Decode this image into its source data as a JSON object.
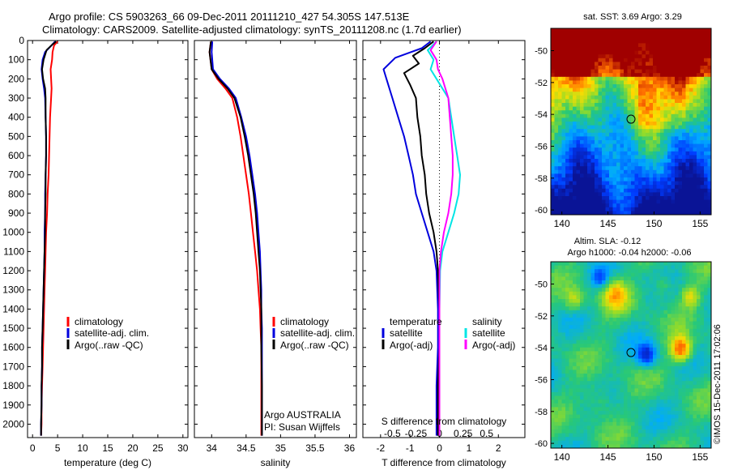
{
  "header": {
    "line1": "Argo profile: CS 5903263_66 09-Dec-2011 20111210_427 54.305S 147.513E",
    "line2": "Climatology: CARS2009. Satellite-adjusted climatology: synTS_20111208.nc (1.7d earlier)"
  },
  "colors": {
    "climatology": "#ff0000",
    "satellite_adj": "#0000dd",
    "argo": "#000000",
    "satellite_salinity": "#00e5e5",
    "argo_salinity_adj": "#ff00ff"
  },
  "depth_axis": {
    "ticks": [
      0,
      100,
      200,
      300,
      400,
      500,
      600,
      700,
      800,
      900,
      1000,
      1100,
      1200,
      1300,
      1400,
      1500,
      1600,
      1700,
      1800,
      1900,
      2000
    ],
    "ylim": [
      0,
      2070
    ]
  },
  "chart_data": [
    {
      "type": "line",
      "xlabel": "temperature (deg C)",
      "xlim": [
        -1,
        31
      ],
      "x_ticks": [
        0,
        5,
        10,
        15,
        20,
        25,
        30
      ],
      "legend": [
        "climatology",
        "satellite-adj. clim.",
        "Argo(..raw -QC)"
      ],
      "series": [
        {
          "name": "climatology",
          "color": "#ff0000",
          "points": [
            [
              5.0,
              5
            ],
            [
              4.3,
              25
            ],
            [
              4.0,
              60
            ],
            [
              3.9,
              100
            ],
            [
              3.6,
              150
            ],
            [
              3.7,
              200
            ],
            [
              3.8,
              250
            ],
            [
              3.7,
              300
            ],
            [
              3.5,
              400
            ],
            [
              3.4,
              500
            ],
            [
              3.3,
              600
            ],
            [
              3.2,
              700
            ],
            [
              3.0,
              800
            ],
            [
              2.9,
              900
            ],
            [
              2.7,
              1000
            ],
            [
              2.6,
              1100
            ],
            [
              2.5,
              1200
            ],
            [
              2.4,
              1300
            ],
            [
              2.3,
              1400
            ],
            [
              2.2,
              1500
            ],
            [
              2.1,
              1600
            ],
            [
              2.0,
              1700
            ],
            [
              1.9,
              1800
            ],
            [
              1.8,
              1900
            ],
            [
              1.8,
              2000
            ],
            [
              1.7,
              2060
            ]
          ]
        },
        {
          "name": "satellite-adj. clim.",
          "color": "#0000dd",
          "points": [
            [
              4.5,
              5
            ],
            [
              3.8,
              25
            ],
            [
              2.5,
              60
            ],
            [
              2.0,
              100
            ],
            [
              1.8,
              150
            ],
            [
              2.0,
              200
            ],
            [
              2.3,
              250
            ],
            [
              2.5,
              300
            ],
            [
              2.6,
              400
            ],
            [
              2.7,
              500
            ],
            [
              2.7,
              600
            ],
            [
              2.6,
              700
            ],
            [
              2.5,
              800
            ],
            [
              2.5,
              900
            ],
            [
              2.4,
              1000
            ],
            [
              2.4,
              1100
            ],
            [
              2.3,
              1200
            ],
            [
              2.2,
              1300
            ],
            [
              2.1,
              1400
            ],
            [
              2.0,
              1500
            ],
            [
              1.9,
              1600
            ],
            [
              1.9,
              1700
            ],
            [
              1.8,
              1800
            ],
            [
              1.8,
              1900
            ],
            [
              1.7,
              2000
            ],
            [
              1.7,
              2060
            ]
          ]
        },
        {
          "name": "Argo(..raw -QC)",
          "color": "#000000",
          "points": [
            [
              4.7,
              5
            ],
            [
              4.0,
              20
            ],
            [
              2.8,
              50
            ],
            [
              2.2,
              100
            ],
            [
              1.9,
              150
            ],
            [
              2.1,
              200
            ],
            [
              2.5,
              250
            ],
            [
              2.6,
              300
            ],
            [
              2.6,
              400
            ],
            [
              2.7,
              500
            ],
            [
              2.7,
              600
            ],
            [
              2.6,
              700
            ],
            [
              2.6,
              800
            ],
            [
              2.5,
              900
            ],
            [
              2.5,
              1000
            ],
            [
              2.4,
              1100
            ],
            [
              2.3,
              1200
            ],
            [
              2.2,
              1300
            ],
            [
              2.1,
              1400
            ],
            [
              2.0,
              1500
            ],
            [
              1.9,
              1600
            ],
            [
              1.9,
              1700
            ],
            [
              1.8,
              1800
            ],
            [
              1.8,
              1900
            ],
            [
              1.7,
              2000
            ],
            [
              1.7,
              2060
            ]
          ]
        }
      ]
    },
    {
      "type": "line",
      "xlabel": "salinity",
      "xlim": [
        33.75,
        36.1
      ],
      "x_ticks": [
        34,
        34.5,
        35,
        35.5,
        36
      ],
      "legend": [
        "climatology",
        "satellite-adj. clim.",
        "Argo(..raw -QC)"
      ],
      "notes": [
        "Argo AUSTRALIA",
        "PI: Susan Wijffels"
      ],
      "series": [
        {
          "name": "climatology",
          "color": "#ff0000",
          "points": [
            [
              33.99,
              5
            ],
            [
              33.97,
              60
            ],
            [
              34.0,
              150
            ],
            [
              34.08,
              200
            ],
            [
              34.2,
              250
            ],
            [
              34.3,
              300
            ],
            [
              34.37,
              400
            ],
            [
              34.42,
              500
            ],
            [
              34.46,
              600
            ],
            [
              34.5,
              700
            ],
            [
              34.54,
              800
            ],
            [
              34.57,
              900
            ],
            [
              34.6,
              1000
            ],
            [
              34.63,
              1100
            ],
            [
              34.66,
              1200
            ],
            [
              34.68,
              1300
            ],
            [
              34.7,
              1400
            ],
            [
              34.71,
              1500
            ],
            [
              34.72,
              1600
            ],
            [
              34.72,
              1800
            ],
            [
              34.72,
              2000
            ],
            [
              34.72,
              2060
            ]
          ]
        },
        {
          "name": "satellite-adj. clim.",
          "color": "#0000dd",
          "points": [
            [
              34.01,
              5
            ],
            [
              34.0,
              60
            ],
            [
              34.02,
              150
            ],
            [
              34.12,
              200
            ],
            [
              34.25,
              250
            ],
            [
              34.35,
              300
            ],
            [
              34.43,
              400
            ],
            [
              34.5,
              500
            ],
            [
              34.55,
              600
            ],
            [
              34.59,
              700
            ],
            [
              34.63,
              800
            ],
            [
              34.66,
              900
            ],
            [
              34.68,
              1000
            ],
            [
              34.7,
              1100
            ],
            [
              34.71,
              1200
            ],
            [
              34.72,
              1300
            ],
            [
              34.72,
              1400
            ],
            [
              34.73,
              1500
            ],
            [
              34.73,
              1600
            ],
            [
              34.73,
              1800
            ],
            [
              34.73,
              2000
            ],
            [
              34.73,
              2060
            ]
          ]
        },
        {
          "name": "Argo(..raw -QC)",
          "color": "#000000",
          "points": [
            [
              33.99,
              5
            ],
            [
              33.97,
              60
            ],
            [
              34.0,
              150
            ],
            [
              34.1,
              200
            ],
            [
              34.23,
              250
            ],
            [
              34.33,
              300
            ],
            [
              34.42,
              400
            ],
            [
              34.48,
              500
            ],
            [
              34.53,
              600
            ],
            [
              34.57,
              700
            ],
            [
              34.61,
              800
            ],
            [
              34.64,
              900
            ],
            [
              34.66,
              1000
            ],
            [
              34.68,
              1100
            ],
            [
              34.7,
              1200
            ],
            [
              34.71,
              1300
            ],
            [
              34.72,
              1400
            ],
            [
              34.72,
              1500
            ],
            [
              34.72,
              1600
            ],
            [
              34.73,
              1800
            ],
            [
              34.73,
              2000
            ],
            [
              34.73,
              2060
            ]
          ]
        }
      ]
    },
    {
      "type": "line",
      "xlabel": "T difference from climatology",
      "x_ticks": [
        -2,
        -1,
        0,
        1,
        2
      ],
      "xlim": [
        -2.6,
        2.9
      ],
      "secondary_xlabel": "S difference from climatology",
      "secondary_ticks": [
        "-0.5",
        "-0.25",
        "0",
        "0.25",
        "0.5"
      ],
      "legend_temperature": {
        "title": "temperature",
        "items": [
          "satellite",
          "Argo(-adj)"
        ]
      },
      "legend_salinity": {
        "title": "salinity",
        "items": [
          "satellite",
          "Argo(-adj)"
        ]
      },
      "series": [
        {
          "name": "satellite",
          "color": "#0000dd",
          "points": [
            [
              -0.3,
              5
            ],
            [
              -0.6,
              40
            ],
            [
              -1.5,
              90
            ],
            [
              -1.9,
              150
            ],
            [
              -1.8,
              200
            ],
            [
              -1.6,
              300
            ],
            [
              -1.4,
              400
            ],
            [
              -1.2,
              500
            ],
            [
              -1.05,
              600
            ],
            [
              -0.9,
              700
            ],
            [
              -0.8,
              800
            ],
            [
              -0.6,
              900
            ],
            [
              -0.4,
              1000
            ],
            [
              -0.2,
              1100
            ],
            [
              -0.1,
              1200
            ],
            [
              -0.05,
              1400
            ],
            [
              -0.05,
              1600
            ],
            [
              -0.1,
              1800
            ],
            [
              -0.1,
              2000
            ],
            [
              -0.1,
              2060
            ]
          ]
        },
        {
          "name": "Argo(-adj)",
          "color": "#000000",
          "points": [
            [
              -0.2,
              5
            ],
            [
              -0.5,
              40
            ],
            [
              -0.9,
              80
            ],
            [
              -0.7,
              120
            ],
            [
              -1.2,
              170
            ],
            [
              -1.0,
              230
            ],
            [
              -0.8,
              300
            ],
            [
              -0.75,
              400
            ],
            [
              -0.65,
              500
            ],
            [
              -0.6,
              600
            ],
            [
              -0.5,
              700
            ],
            [
              -0.45,
              800
            ],
            [
              -0.35,
              900
            ],
            [
              -0.2,
              1000
            ],
            [
              -0.1,
              1100
            ],
            [
              -0.05,
              1200
            ],
            [
              0.0,
              1400
            ],
            [
              0.0,
              1600
            ],
            [
              -0.05,
              1800
            ],
            [
              -0.05,
              2000
            ],
            [
              -0.05,
              2060
            ]
          ]
        },
        {
          "name": "satellite",
          "color": "#00e5e5",
          "points": [
            [
              -0.1,
              5
            ],
            [
              -0.4,
              50
            ],
            [
              -0.2,
              100
            ],
            [
              -0.3,
              150
            ],
            [
              -0.1,
              200
            ],
            [
              0.3,
              300
            ],
            [
              0.4,
              400
            ],
            [
              0.5,
              500
            ],
            [
              0.6,
              600
            ],
            [
              0.7,
              700
            ],
            [
              0.65,
              800
            ],
            [
              0.5,
              900
            ],
            [
              0.3,
              1000
            ],
            [
              0.1,
              1100
            ],
            [
              0.02,
              1200
            ],
            [
              0.0,
              1400
            ],
            [
              0.0,
              1600
            ],
            [
              0.0,
              1800
            ],
            [
              0.0,
              2000
            ],
            [
              0.0,
              2060
            ]
          ]
        },
        {
          "name": "Argo(-adj)",
          "color": "#ff00ff",
          "points": [
            [
              -0.1,
              5
            ],
            [
              -0.3,
              50
            ],
            [
              -0.1,
              100
            ],
            [
              -0.05,
              150
            ],
            [
              0.1,
              200
            ],
            [
              0.3,
              300
            ],
            [
              0.35,
              400
            ],
            [
              0.4,
              500
            ],
            [
              0.45,
              600
            ],
            [
              0.45,
              700
            ],
            [
              0.4,
              800
            ],
            [
              0.3,
              900
            ],
            [
              0.15,
              1000
            ],
            [
              0.05,
              1100
            ],
            [
              0.0,
              1200
            ],
            [
              0.0,
              1400
            ],
            [
              0.0,
              1600
            ],
            [
              0.0,
              1800
            ],
            [
              0.0,
              2000
            ],
            [
              0.0,
              2060
            ]
          ]
        }
      ]
    },
    {
      "type": "heatmap",
      "title": "sat. SST: 3.69 Argo: 3.29",
      "x_ticks": [
        140,
        145,
        150,
        155
      ],
      "y_ticks": [
        -50,
        -52,
        -54,
        -56,
        -58,
        -60
      ],
      "xlim": [
        138.8,
        156.2
      ],
      "ylim": [
        -60.3,
        -48.6
      ],
      "marker": {
        "lon": 147.5,
        "lat": -54.3
      }
    },
    {
      "type": "heatmap",
      "title_line1": "Altim. SLA: -0.12",
      "title_line2": "Argo h1000: -0.04 h2000: -0.06",
      "x_ticks": [
        140,
        145,
        150,
        155
      ],
      "y_ticks": [
        -50,
        -52,
        -54,
        -56,
        -58,
        -60
      ],
      "xlim": [
        138.8,
        156.2
      ],
      "ylim": [
        -60.3,
        -48.6
      ],
      "marker": {
        "lon": 147.5,
        "lat": -54.3
      }
    }
  ],
  "footer_vertical": "©IMOS 15-Dec-2011 17:02:06"
}
